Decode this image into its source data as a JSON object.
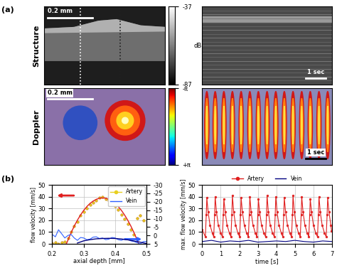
{
  "panel_labels": [
    "(a)",
    "(b)"
  ],
  "images": [
    {
      "row": "Structure",
      "scale_bar": "0.2 mm"
    },
    {
      "row": "Structure",
      "scale_bar": "1 sec"
    },
    {
      "row": "Doppler",
      "scale_bar": "0.2 mm"
    },
    {
      "row": "Doppler",
      "scale_bar": "1 sec"
    }
  ],
  "colorbars": [
    {
      "row": "Structure",
      "ylim": [
        -87,
        -37
      ],
      "ticks": [
        -87,
        -37
      ],
      "label": "dB"
    },
    {
      "row": "Doppler",
      "ylim": [
        3.14159,
        -3.14159
      ],
      "ticks": [
        {
          "value": -3.14159,
          "label": "-π"
        },
        {
          "value": 3.14159,
          "label": "+π"
        }
      ]
    }
  ],
  "chart_data": [
    {
      "type": "line",
      "xlabel": "axial depth [mm]",
      "ylabel": "flow velocity [mm/s]",
      "xlim": [
        0.2,
        0.5
      ],
      "xticks": [
        0.2,
        0.3,
        0.4,
        0.5
      ],
      "ylim": [
        0,
        50
      ],
      "yticks": [
        0,
        10,
        20,
        30,
        40,
        50
      ],
      "y2lim": [
        5,
        -30
      ],
      "y2ticks": [
        5,
        0,
        -5,
        -10,
        -15,
        -20,
        -25,
        -30
      ],
      "grid": true,
      "legend": "upper right",
      "series": [
        {
          "name": "Artery",
          "color": "#e8d020",
          "marker": "o",
          "line_style": "none",
          "x": [
            0.2,
            0.21,
            0.22,
            0.23,
            0.24,
            0.25,
            0.26,
            0.27,
            0.28,
            0.29,
            0.3,
            0.31,
            0.32,
            0.33,
            0.34,
            0.35,
            0.36,
            0.37,
            0.38,
            0.39,
            0.4,
            0.41,
            0.42,
            0.43,
            0.44,
            0.45,
            0.46,
            0.47,
            0.48,
            0.49
          ],
          "values": [
            0.5,
            1,
            0,
            1,
            2,
            5,
            10,
            15,
            19,
            24,
            27,
            30,
            33,
            35,
            37,
            39,
            40,
            38,
            37,
            35,
            32,
            29,
            25,
            21,
            17,
            12,
            8,
            22,
            24,
            20
          ]
        },
        {
          "color": "#e02020",
          "line_style": "solid",
          "x": [
            0.245,
            0.25,
            0.26,
            0.27,
            0.28,
            0.29,
            0.3,
            0.31,
            0.32,
            0.33,
            0.34,
            0.35,
            0.36,
            0.37,
            0.38,
            0.39,
            0.4,
            0.41,
            0.42,
            0.43,
            0.44,
            0.45,
            0.46,
            0.47,
            0.475
          ],
          "values": [
            0,
            3.3,
            9.5,
            15.1,
            20.1,
            24.5,
            28.4,
            31.6,
            34.3,
            36.3,
            37.8,
            38.7,
            39,
            38.7,
            37.8,
            36.3,
            34.3,
            31.6,
            28.4,
            24.5,
            20.1,
            15.1,
            9.5,
            3.3,
            0
          ]
        },
        {
          "name": "Vein",
          "color": "#3060ff",
          "line_style": "solid",
          "axis": "y2",
          "x": [
            0.2,
            0.21,
            0.22,
            0.23,
            0.24,
            0.25,
            0.26,
            0.27,
            0.28,
            0.29,
            0.3,
            0.31,
            0.32,
            0.33,
            0.34,
            0.35,
            0.36,
            0.37,
            0.38,
            0.39,
            0.4,
            0.41,
            0.42,
            0.43,
            0.44,
            0.45,
            0.46,
            0.47,
            0.48,
            0.49,
            0.5
          ],
          "values": [
            -0.6,
            0.8,
            -3.4,
            -1,
            1.5,
            0,
            -0.6,
            1.5,
            2.9,
            1.2,
            1.5,
            2.5,
            2.2,
            1,
            0.8,
            1.8,
            1.5,
            2.5,
            2.2,
            1.2,
            1.5,
            2.5,
            2.9,
            2,
            2.2,
            3.2,
            3.6,
            4.3,
            5,
            3.6,
            3.6
          ]
        },
        {
          "color": "#000080",
          "line_style": "solid",
          "axis": "y2",
          "x": [
            0.28,
            0.3,
            0.32,
            0.34,
            0.36,
            0.38,
            0.4,
            0.42,
            0.44,
            0.46,
            0.48,
            0.5
          ],
          "values": [
            4.5,
            3.2,
            2.5,
            2.0,
            1.8,
            1.7,
            1.8,
            2.1,
            2.6,
            3.3,
            4.0,
            4.8
          ]
        }
      ]
    },
    {
      "type": "line",
      "xlabel": "time [s]",
      "ylabel": "max. flow velocity [mm/s]",
      "xlim": [
        0,
        7
      ],
      "xticks": [
        0,
        1,
        2,
        3,
        4,
        5,
        6,
        7
      ],
      "ylim": [
        0,
        50
      ],
      "yticks": [
        0,
        10,
        20,
        30,
        40,
        50
      ],
      "grid": true,
      "legend": "upper center",
      "series": [
        {
          "name": "Artery",
          "color": "#e02020",
          "marker": "o",
          "line_style": "solid",
          "x": [
            0.0,
            0.17,
            0.22,
            0.25,
            0.32,
            0.42,
            0.55,
            0.62,
            0.67,
            0.7,
            0.77,
            0.87,
            1.0,
            1.09,
            1.14,
            1.17,
            1.24,
            1.34,
            1.47,
            1.55,
            1.6,
            1.63,
            1.7,
            1.8,
            1.93,
            2.02,
            2.07,
            2.1,
            2.17,
            2.27,
            2.4,
            2.49,
            2.54,
            2.57,
            2.64,
            2.74,
            2.87,
            2.95,
            3.0,
            3.03,
            3.1,
            3.2,
            3.33,
            3.42,
            3.47,
            3.5,
            3.57,
            3.67,
            3.8,
            3.89,
            3.94,
            3.97,
            4.04,
            4.14,
            4.27,
            4.35,
            4.4,
            4.43,
            4.5,
            4.6,
            4.73,
            4.82,
            4.87,
            4.9,
            4.97,
            5.07,
            5.2,
            5.29,
            5.34,
            5.37,
            5.44,
            5.54,
            5.67,
            5.75,
            5.8,
            5.83,
            5.9,
            6.0,
            6.13,
            6.22,
            6.27,
            6.3,
            6.37,
            6.47,
            6.6,
            6.69,
            6.74,
            6.77,
            6.84,
            6.94,
            6.98
          ],
          "values": [
            12,
            6,
            25,
            39,
            27,
            16,
            9,
            6,
            25,
            40,
            27,
            16,
            9,
            6,
            25,
            38,
            27,
            16,
            9,
            6,
            25,
            41,
            27,
            16,
            9,
            6,
            25,
            39,
            27,
            16,
            9,
            6,
            25,
            40,
            27,
            16,
            9,
            6,
            25,
            38,
            27,
            16,
            9,
            6,
            25,
            41,
            27,
            16,
            9,
            6,
            25,
            40,
            27,
            16,
            9,
            6,
            25,
            39,
            27,
            16,
            9,
            6,
            25,
            41,
            27,
            16,
            9,
            6,
            25,
            40,
            27,
            16,
            9,
            6,
            25,
            38,
            27,
            16,
            9,
            6,
            25,
            40,
            27,
            16,
            9,
            6,
            25,
            39,
            27,
            16,
            11
          ]
        },
        {
          "name": "Vein",
          "color": "#000080",
          "line_style": "solid",
          "x": [
            0,
            0.5,
            1,
            1.5,
            2,
            2.5,
            3,
            3.5,
            4,
            4.5,
            5,
            5.5,
            6,
            6.5,
            7
          ],
          "values": [
            2,
            3,
            1.5,
            2.5,
            2,
            3,
            1.5,
            2,
            2.5,
            2,
            3,
            2,
            1.5,
            2.5,
            2
          ]
        }
      ]
    }
  ]
}
